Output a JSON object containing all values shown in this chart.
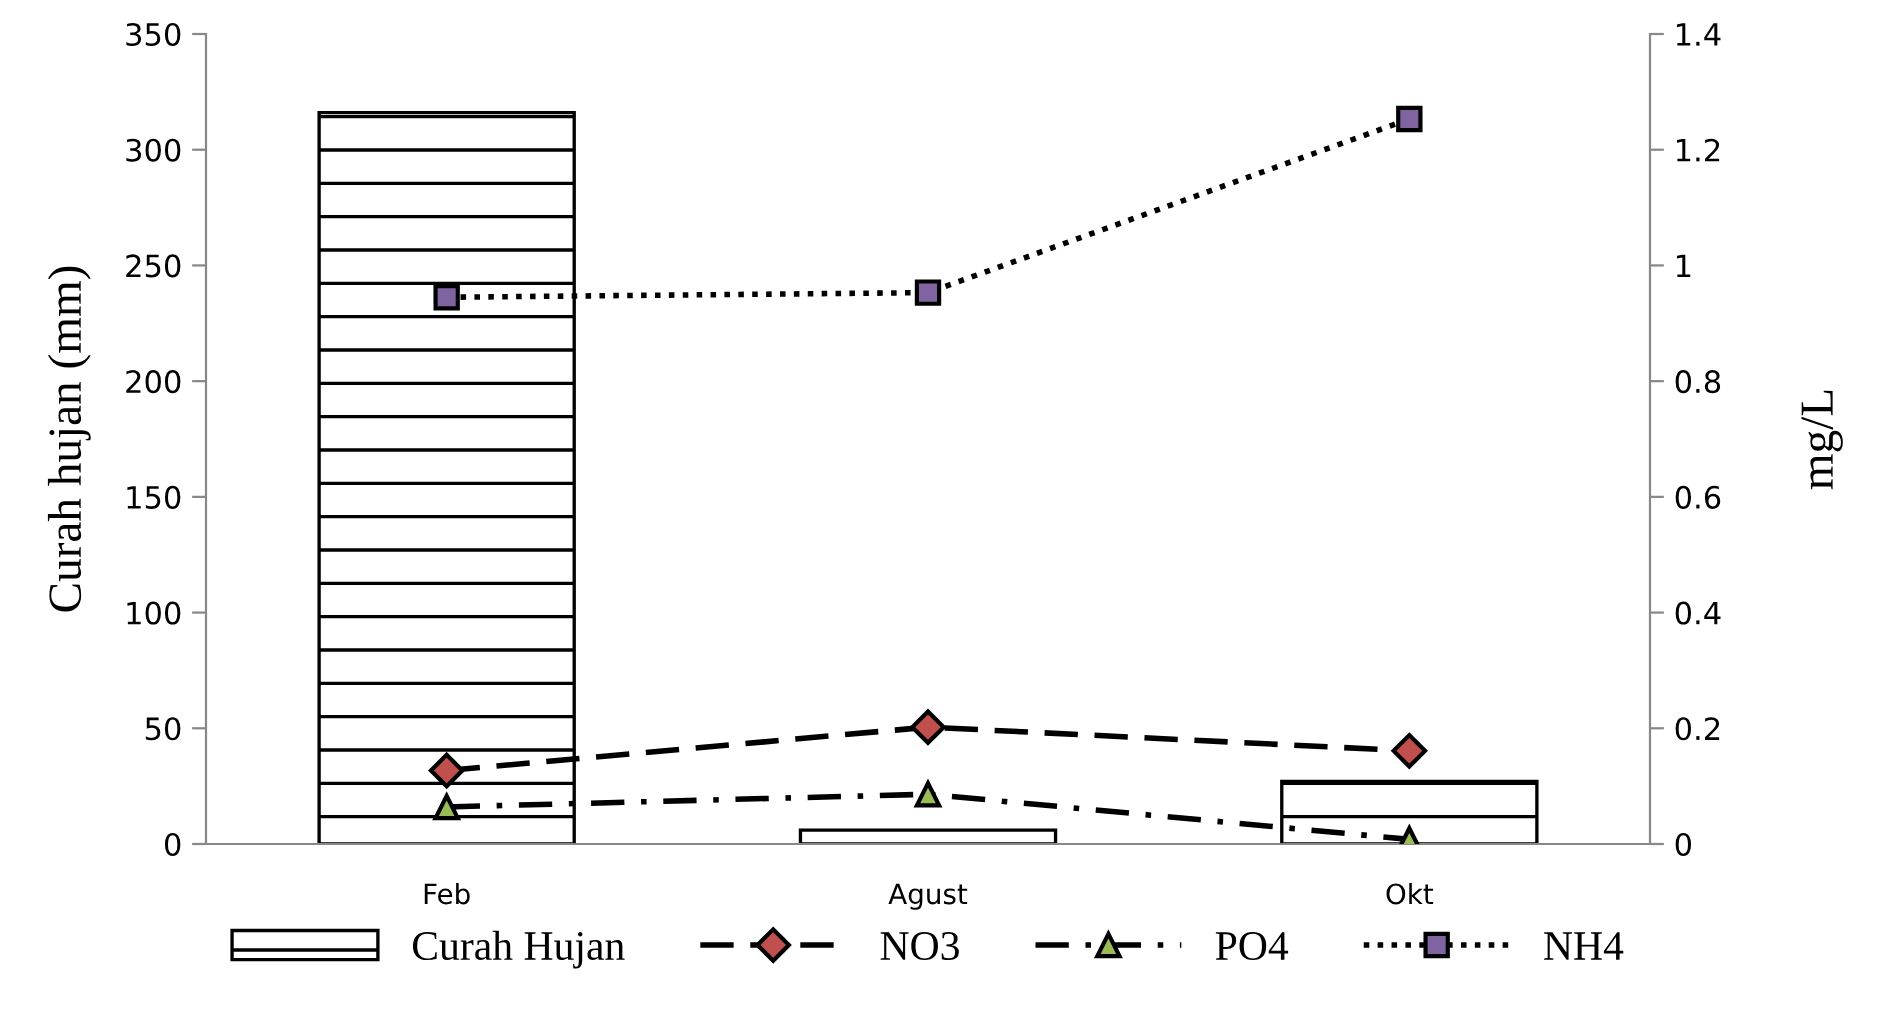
{
  "chart_data": {
    "type": "bar",
    "categories": [
      "Feb",
      "Agust",
      "Okt"
    ],
    "ylabel": "Curah hujan (mm)",
    "y2label": "mg/L",
    "ylim": [
      0,
      350
    ],
    "yticks": [
      0,
      50,
      100,
      150,
      200,
      250,
      300,
      350
    ],
    "y2lim": [
      0,
      1.4
    ],
    "y2ticks": [
      0,
      {
        "value": 0.2,
        "label": "0.2"
      },
      {
        "value": 0.4,
        "label": "0.4"
      },
      {
        "value": 0.6,
        "label": "0.6"
      },
      {
        "value": 0.8,
        "label": "0.8"
      },
      {
        "value": 1,
        "label": "1"
      },
      {
        "value": 1.2,
        "label": "1.2"
      },
      {
        "value": 1.4,
        "label": "1.4"
      }
    ],
    "grid": false,
    "legend": "bottom",
    "series": [
      {
        "name": "Curah Hujan",
        "color": "#000000",
        "values": [
          316,
          6,
          27
        ]
      },
      {
        "name": "NO3",
        "type": "line",
        "axis": "y2",
        "color": "#c0504d",
        "marker": "diamond",
        "line_style": "dashed",
        "values": [
          0.127,
          0.202,
          0.161
        ]
      },
      {
        "name": "PO4",
        "type": "line",
        "axis": "y2",
        "color": "#9bbb59",
        "marker": "triangle",
        "line_style": "dashdot",
        "values": [
          0.064,
          0.086,
          0.008
        ]
      },
      {
        "name": "NH4",
        "type": "line",
        "axis": "y2",
        "color": "#8064a2",
        "marker": "square",
        "line_style": "dotted",
        "values": [
          0.945,
          0.953,
          1.253
        ]
      }
    ]
  }
}
